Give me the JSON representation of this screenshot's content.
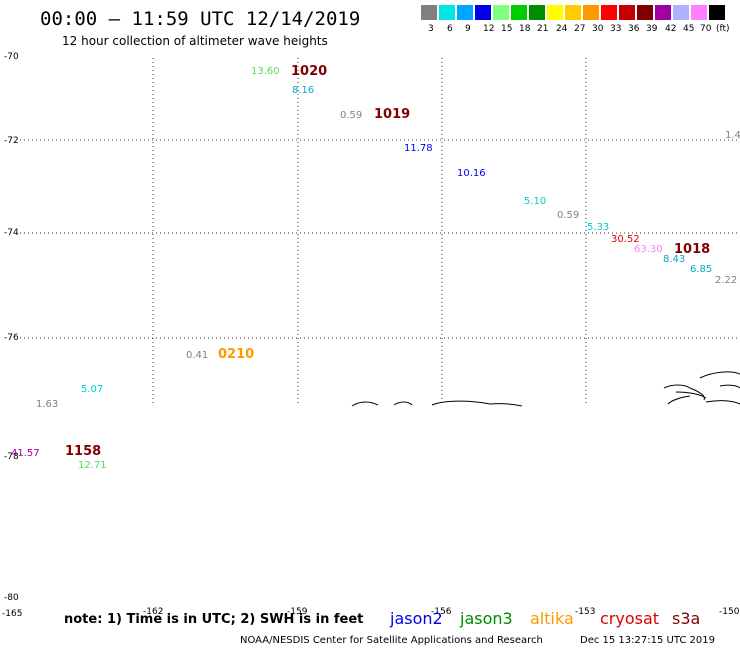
{
  "header": {
    "title": "00:00 – 11:59 UTC 12/14/2019",
    "subtitle": "12 hour collection of altimeter wave heights"
  },
  "legend": {
    "colors": [
      "#808080",
      "#00e5e5",
      "#00a6ff",
      "#0000ee",
      "#80ff80",
      "#00cc00",
      "#008c00",
      "#ffff00",
      "#ffcc00",
      "#ff9900",
      "#ff0000",
      "#c40000",
      "#800000",
      "#a000a0",
      "#b0b0ff",
      "#ff80ff",
      "#000000"
    ],
    "labels": [
      "3",
      "6",
      "9",
      "12",
      "15",
      "18",
      "21",
      "24",
      "27",
      "30",
      "33",
      "36",
      "39",
      "42",
      "45",
      "70",
      "(ft)"
    ]
  },
  "axes": {
    "y_ticks": [
      "-70",
      "-72",
      "-74",
      "-76",
      "-78",
      "-80"
    ],
    "x_ticks": [
      "-165",
      "-162",
      "-159",
      "-156",
      "-153",
      "-150"
    ]
  },
  "points": [
    {
      "t": "13.60",
      "c": "#55dd55"
    },
    {
      "t": "1020",
      "c": "#800000",
      "time": true
    },
    {
      "t": "8.16",
      "c": "#00aacc"
    },
    {
      "t": "0.59",
      "c": "#808080"
    },
    {
      "t": "1019",
      "c": "#800000",
      "time": true
    },
    {
      "t": "11.78",
      "c": "#0000ee"
    },
    {
      "t": "10.16",
      "c": "#0000ee"
    },
    {
      "t": "5.10",
      "c": "#00cccc"
    },
    {
      "t": "0.59",
      "c": "#808080"
    },
    {
      "t": "5.33",
      "c": "#00cccc"
    },
    {
      "t": "30.52",
      "c": "#dd0000"
    },
    {
      "t": "63.30",
      "c": "#ff80ff"
    },
    {
      "t": "1018",
      "c": "#800000",
      "time": true
    },
    {
      "t": "8.43",
      "c": "#00aacc"
    },
    {
      "t": "6.85",
      "c": "#00aacc"
    },
    {
      "t": "2.22",
      "c": "#808080"
    },
    {
      "t": "1.4",
      "c": "#808080"
    },
    {
      "t": "0.41",
      "c": "#808080"
    },
    {
      "t": "0210",
      "c": "#ff9900",
      "time": true
    },
    {
      "t": "5.07",
      "c": "#00cccc"
    },
    {
      "t": "1.63",
      "c": "#808080"
    },
    {
      "t": "41.57",
      "c": "#a000a0"
    },
    {
      "t": "1158",
      "c": "#800000",
      "time": true
    },
    {
      "t": "12.71",
      "c": "#55dd55"
    }
  ],
  "footer": {
    "note": "note: 1) Time is in UTC; 2) SWH is in feet",
    "satellites": [
      {
        "name": "jason2",
        "color": "#0000ee"
      },
      {
        "name": "jason3",
        "color": "#008c00"
      },
      {
        "name": "altika",
        "color": "#ff9900"
      },
      {
        "name": "cryosat",
        "color": "#dd0000"
      },
      {
        "name": "s3a",
        "color": "#800000"
      }
    ],
    "credit": "NOAA/NESDIS Center for Satellite Applications and Research",
    "timestamp": "Dec 15 13:27:15 UTC 2019"
  }
}
